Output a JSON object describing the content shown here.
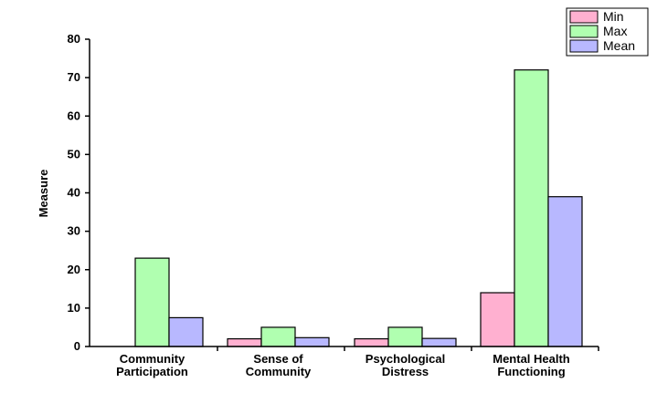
{
  "chart_data": {
    "type": "bar",
    "title": "",
    "xlabel": "",
    "ylabel": "Measure",
    "ylim": [
      0,
      80
    ],
    "yticks": [
      0,
      10,
      20,
      30,
      40,
      50,
      60,
      70,
      80
    ],
    "grid": false,
    "legend_position": "top-right",
    "categories": [
      [
        "Community",
        "Participation"
      ],
      [
        "Sense of",
        "Community"
      ],
      [
        "Psychological",
        "Distress"
      ],
      [
        "Mental Health",
        "Functioning"
      ]
    ],
    "series": [
      {
        "name": "Min",
        "color": "#ffb0d0",
        "values": [
          0,
          2,
          2,
          14
        ]
      },
      {
        "name": "Max",
        "color": "#b0ffb0",
        "values": [
          23,
          5,
          5,
          72
        ]
      },
      {
        "name": "Mean",
        "color": "#b8b8ff",
        "values": [
          7.5,
          2.3,
          2.1,
          39
        ]
      }
    ]
  }
}
